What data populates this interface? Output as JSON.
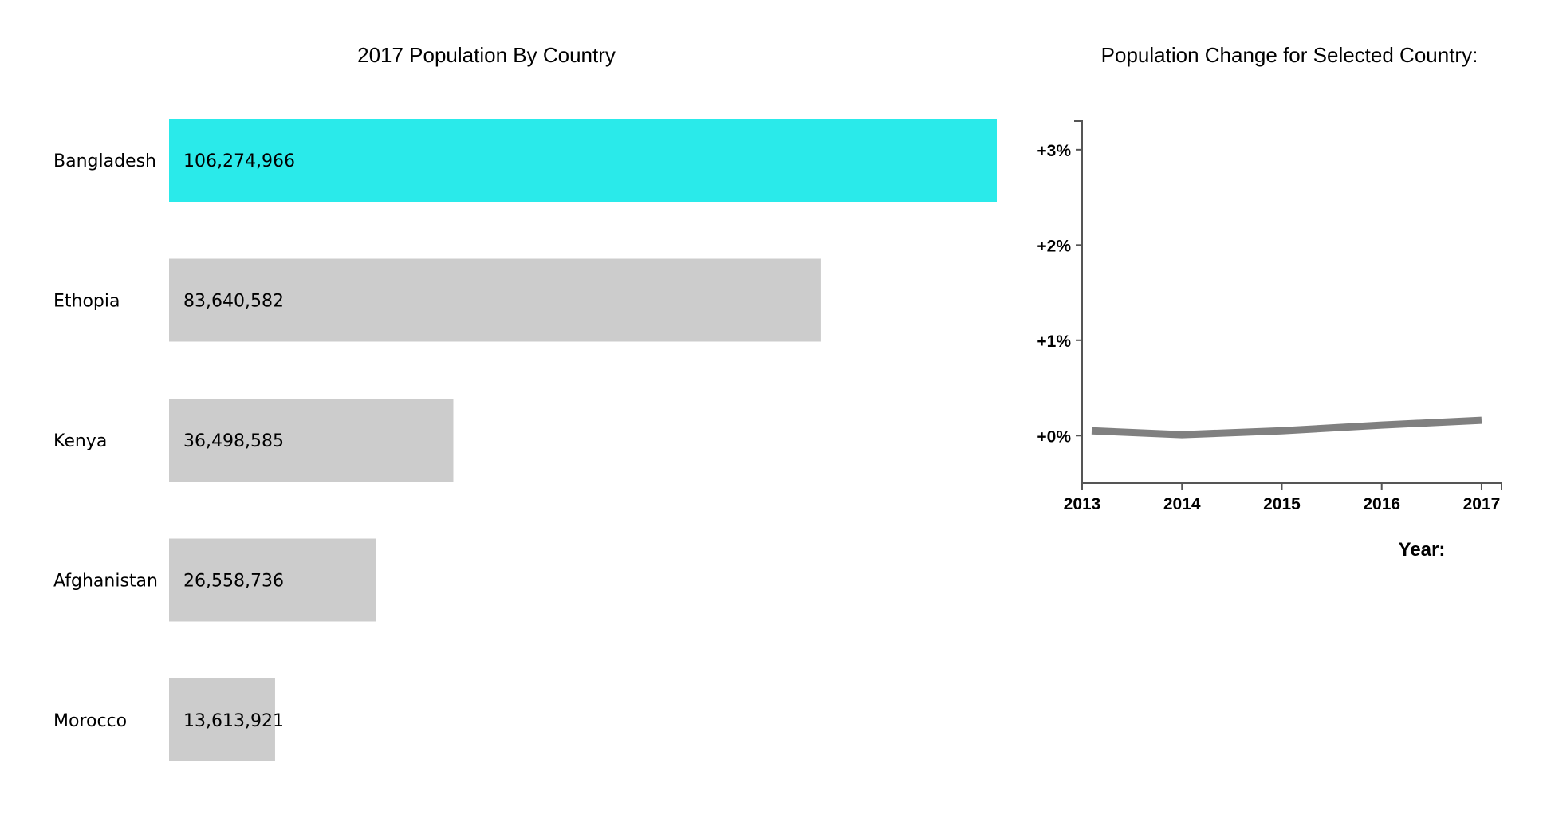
{
  "chart_data": [
    {
      "type": "bar",
      "orientation": "horizontal",
      "title": "2017 Population By Country",
      "categories": [
        "Bangladesh",
        "Ethopia",
        "Kenya",
        "Afghanistan",
        "Morocco"
      ],
      "values": [
        106274966,
        83640582,
        36498585,
        26558736,
        13613921
      ],
      "value_labels": [
        "106,274,966",
        "83,640,582",
        "36,498,585",
        "26,558,736",
        "13,613,921"
      ],
      "selected": "Bangladesh",
      "colors": {
        "selected": "#2aeaea",
        "default": "#cccccc"
      }
    },
    {
      "type": "line",
      "title": "Population Change for Selected Country:",
      "xlabel": "Year:",
      "ylabel": "",
      "x": [
        2013,
        2014,
        2015,
        2016,
        2017
      ],
      "series": [
        {
          "values": [
            0.05,
            0.01,
            0.05,
            0.11,
            0.16
          ]
        }
      ],
      "x_ticks": [
        "2013",
        "2014",
        "2015",
        "2016",
        "2017"
      ],
      "y_ticks": [
        "+0%",
        "+1%",
        "+2%",
        "+3%"
      ],
      "xlim": [
        2013,
        2017.2
      ],
      "ylim": [
        -0.5,
        3.3
      ],
      "line_color": "#808080"
    }
  ]
}
